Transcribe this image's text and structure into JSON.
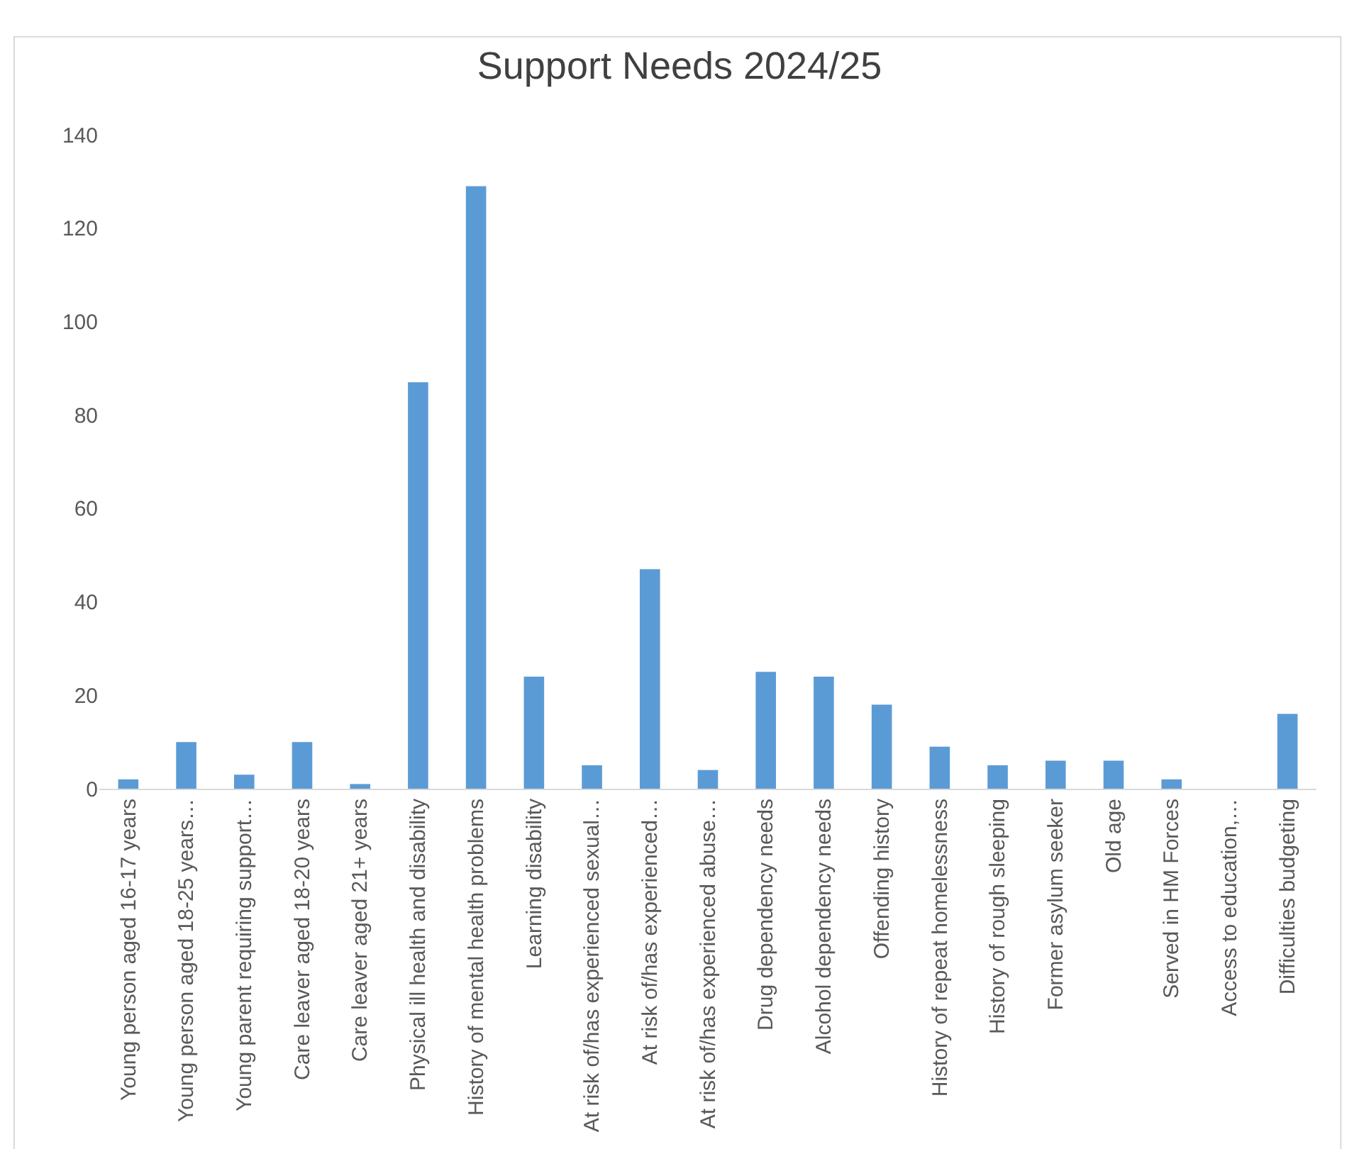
{
  "chart_data": {
    "type": "bar",
    "title": "Support Needs 2024/25",
    "categories": [
      "Young person aged 16-17 years",
      "Young person aged 18-25 years…",
      "Young parent requiring support…",
      "Care leaver aged 18-20 years",
      "Care leaver aged 21+ years",
      "Physical ill health and disability",
      "History of mental health problems",
      "Learning disability",
      "At risk of/has experienced sexual…",
      "At risk of/has experienced…",
      "At risk of/has experienced abuse…",
      "Drug dependency needs",
      "Alcohol dependency needs",
      "Offending history",
      "History of repeat homelessness",
      "History of rough sleeping",
      "Former asylum seeker",
      "Old age",
      "Served in HM Forces",
      "Access to education,…",
      "Difficulties budgeting"
    ],
    "values": [
      2,
      10,
      3,
      10,
      1,
      87,
      129,
      24,
      5,
      47,
      4,
      25,
      24,
      18,
      9,
      5,
      6,
      6,
      2,
      0,
      16
    ],
    "color": "#5b9bd5",
    "ylim": [
      0,
      140
    ],
    "yticks": [
      0,
      20,
      40,
      60,
      80,
      100,
      120,
      140
    ],
    "grid": false
  }
}
